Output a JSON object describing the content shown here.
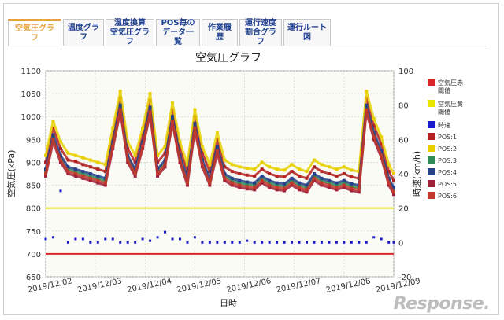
{
  "tabs": [
    {
      "label": "空気圧グラフ",
      "active": true
    },
    {
      "label": "温度グラフ",
      "active": false
    },
    {
      "label": "温度換算\n空気圧グラフ",
      "active": false
    },
    {
      "label": "POS毎の\nデータ一覧",
      "active": false
    },
    {
      "label": "作業履歴",
      "active": false
    },
    {
      "label": "運行速度\n割合グラフ",
      "active": false
    },
    {
      "label": "運行ルート図",
      "active": false
    }
  ],
  "watermark": "Response.",
  "chart_data": {
    "type": "line",
    "title": "空気圧グラフ",
    "xlabel": "日時",
    "ylabel": "空気圧(kPa)",
    "y2label": "時速(km/h)",
    "ylim": [
      650,
      1100
    ],
    "y2lim": [
      -20,
      100
    ],
    "yticks": [
      650,
      700,
      750,
      800,
      850,
      900,
      950,
      1000,
      1050,
      1100
    ],
    "y2ticks": [
      -20,
      0,
      20,
      40,
      60,
      80,
      100
    ],
    "xticks": [
      "2019/12/02",
      "2019/12/03",
      "2019/12/04",
      "2019/12/05",
      "2019/12/06",
      "2019/12/07",
      "2019/12/08",
      "2019/12/09"
    ],
    "grid": true,
    "legend_position": "right",
    "x": [
      0,
      0.15,
      0.3,
      0.45,
      0.6,
      0.75,
      0.9,
      1.05,
      1.2,
      1.35,
      1.5,
      1.65,
      1.8,
      1.95,
      2.1,
      2.25,
      2.4,
      2.55,
      2.7,
      2.85,
      3.0,
      3.15,
      3.3,
      3.45,
      3.6,
      3.75,
      3.9,
      4.05,
      4.2,
      4.35,
      4.5,
      4.65,
      4.8,
      4.95,
      5.1,
      5.25,
      5.4,
      5.55,
      5.7,
      5.85,
      6.0,
      6.15,
      6.3,
      6.45,
      6.6,
      6.75,
      6.9,
      7.0
    ],
    "thresholds": [
      {
        "name": "空気圧赤閾値",
        "value": 700,
        "color": "#d9262b"
      },
      {
        "name": "空気圧黄閾値",
        "value": 800,
        "color": "#e6e600"
      }
    ],
    "series": [
      {
        "name": "時速",
        "color": "#1b1bcc",
        "axis": "right",
        "values": [
          2,
          3,
          30,
          0,
          2,
          2,
          0,
          0,
          2,
          2,
          0,
          0,
          0,
          2,
          1,
          3,
          6,
          2,
          2,
          0,
          3,
          0,
          0,
          0,
          0,
          0,
          0,
          1,
          0,
          0,
          0,
          0,
          0,
          0,
          0,
          0,
          0,
          0,
          0,
          0,
          0,
          0,
          0,
          0,
          3,
          2,
          0,
          0
        ]
      },
      {
        "name": "POS:1",
        "color": "#b22222",
        "axis": "left",
        "values": [
          900,
          975,
          930,
          905,
          902,
          895,
          890,
          885,
          880,
          960,
          1040,
          930,
          900,
          960,
          1035,
          900,
          920,
          1015,
          930,
          880,
          1000,
          920,
          880,
          950,
          890,
          880,
          875,
          872,
          870,
          885,
          875,
          870,
          868,
          880,
          870,
          865,
          890,
          880,
          875,
          870,
          875,
          868,
          865,
          1040,
          980,
          940,
          880,
          860
        ]
      },
      {
        "name": "POS:2",
        "color": "#e8d000",
        "axis": "left",
        "values": [
          915,
          990,
          945,
          920,
          915,
          910,
          905,
          900,
          895,
          975,
          1055,
          945,
          915,
          975,
          1050,
          915,
          935,
          1030,
          945,
          895,
          1015,
          935,
          895,
          965,
          905,
          895,
          890,
          887,
          885,
          900,
          890,
          885,
          883,
          895,
          885,
          880,
          905,
          895,
          890,
          885,
          890,
          883,
          880,
          1055,
          995,
          955,
          895,
          875
        ]
      },
      {
        "name": "POS:3",
        "color": "#2e8b57",
        "axis": "left",
        "values": [
          880,
          955,
          910,
          885,
          880,
          875,
          870,
          865,
          860,
          940,
          1020,
          910,
          880,
          940,
          1015,
          880,
          900,
          995,
          910,
          860,
          980,
          900,
          860,
          930,
          870,
          860,
          855,
          852,
          850,
          865,
          855,
          850,
          848,
          860,
          850,
          845,
          870,
          860,
          855,
          850,
          855,
          848,
          845,
          1020,
          960,
          920,
          860,
          840
        ]
      },
      {
        "name": "POS:4",
        "color": "#27408b",
        "axis": "left",
        "values": [
          885,
          960,
          915,
          890,
          885,
          880,
          875,
          870,
          865,
          945,
          1025,
          915,
          885,
          945,
          1020,
          885,
          905,
          1000,
          915,
          865,
          985,
          905,
          865,
          935,
          875,
          865,
          860,
          857,
          855,
          870,
          860,
          855,
          853,
          865,
          855,
          850,
          875,
          865,
          860,
          855,
          860,
          853,
          850,
          1025,
          965,
          925,
          865,
          845
        ]
      },
      {
        "name": "POS:5",
        "color": "#a0203a",
        "axis": "left",
        "values": [
          870,
          945,
          900,
          875,
          870,
          865,
          860,
          855,
          850,
          930,
          1010,
          900,
          870,
          930,
          1005,
          870,
          890,
          985,
          900,
          850,
          970,
          890,
          850,
          920,
          860,
          850,
          845,
          842,
          840,
          855,
          845,
          840,
          838,
          850,
          840,
          835,
          860,
          850,
          845,
          840,
          845,
          838,
          835,
          1010,
          950,
          910,
          850,
          830
        ]
      },
      {
        "name": "POS:6",
        "color": "#c0392b",
        "axis": "left",
        "values": [
          875,
          950,
          905,
          880,
          875,
          870,
          865,
          860,
          855,
          935,
          1015,
          905,
          875,
          935,
          1010,
          875,
          895,
          990,
          905,
          855,
          975,
          895,
          855,
          925,
          865,
          855,
          850,
          847,
          845,
          860,
          850,
          845,
          843,
          855,
          845,
          840,
          865,
          855,
          850,
          845,
          850,
          843,
          840,
          1015,
          955,
          915,
          855,
          835
        ]
      }
    ]
  }
}
